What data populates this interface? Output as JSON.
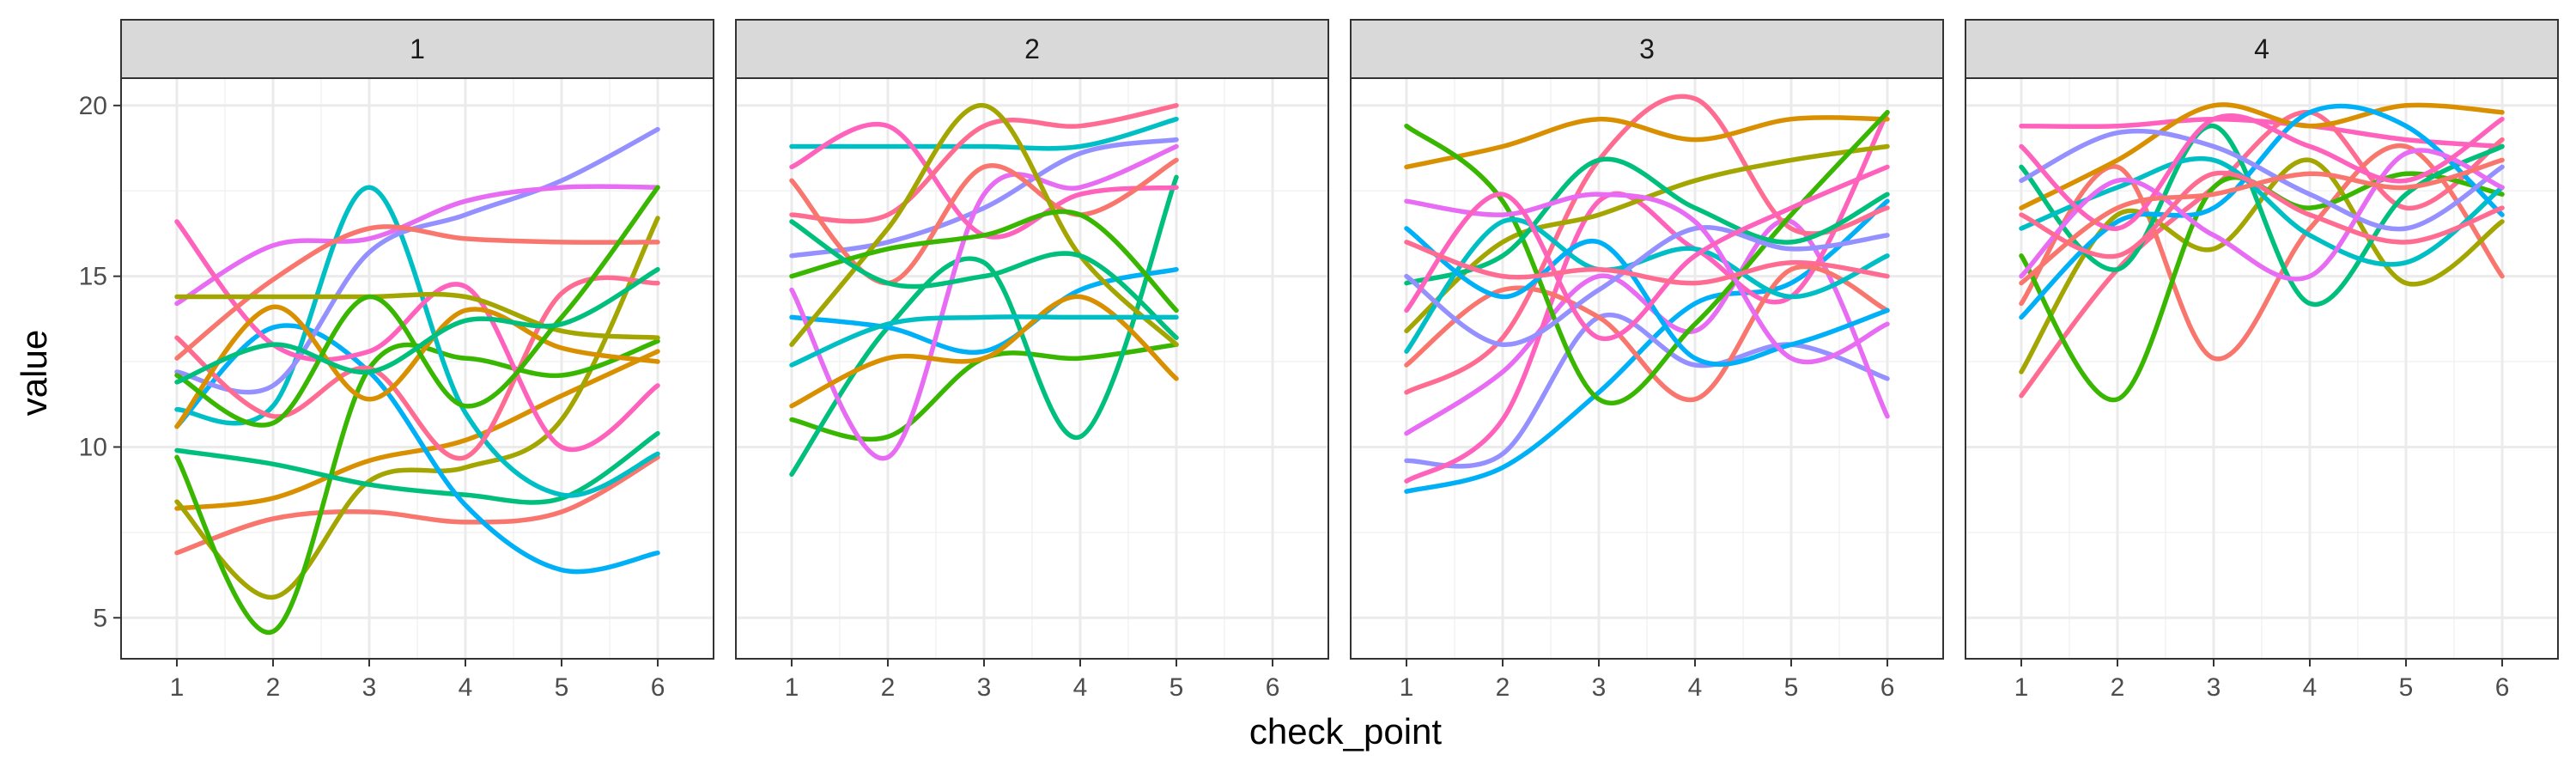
{
  "chart_data": {
    "type": "line",
    "subtype": "smoothed spaghetti lines, faceted",
    "xlabel": "check_point",
    "ylabel": "value",
    "xlim": [
      0.42,
      6.58
    ],
    "ylim": [
      3.8,
      20.8
    ],
    "x_ticks": [
      1,
      2,
      3,
      4,
      5,
      6
    ],
    "y_ticks": [
      5,
      10,
      15,
      20
    ],
    "grid": true,
    "legend": "none",
    "colors": [
      "#F8766D",
      "#D89000",
      "#A3A500",
      "#39B600",
      "#00BF7D",
      "#00BFC4",
      "#00B0F6",
      "#9590FF",
      "#E76BF3",
      "#FF62BC",
      "#FF6C91"
    ],
    "panels": [
      {
        "facet": "1",
        "series": [
          {
            "x": [
              1,
              2,
              3,
              4,
              5,
              6
            ],
            "y": [
              6.9,
              7.9,
              8.1,
              7.8,
              8.1,
              9.7
            ]
          },
          {
            "x": [
              1,
              2,
              3,
              4,
              5,
              6
            ],
            "y": [
              8.2,
              8.5,
              9.6,
              10.2,
              11.5,
              12.8
            ]
          },
          {
            "x": [
              1,
              2,
              3,
              4,
              5,
              6
            ],
            "y": [
              8.4,
              5.6,
              9.0,
              9.4,
              10.8,
              16.7
            ]
          },
          {
            "x": [
              1,
              2,
              3,
              4,
              5,
              6
            ],
            "y": [
              9.7,
              4.6,
              12.3,
              12.6,
              12.1,
              13.1
            ]
          },
          {
            "x": [
              1,
              2,
              3,
              4,
              5,
              6
            ],
            "y": [
              9.9,
              9.5,
              8.9,
              8.6,
              8.5,
              10.4
            ]
          },
          {
            "x": [
              1,
              2,
              3,
              4,
              5,
              6
            ],
            "y": [
              11.1,
              11.2,
              17.6,
              11.0,
              8.6,
              9.8
            ]
          },
          {
            "x": [
              1,
              2,
              3,
              4,
              5,
              6
            ],
            "y": [
              10.6,
              13.5,
              12.2,
              8.3,
              6.4,
              6.9
            ]
          },
          {
            "x": [
              1,
              2,
              3,
              4,
              5,
              6
            ],
            "y": [
              12.2,
              11.8,
              15.7,
              16.8,
              17.8,
              19.3
            ]
          },
          {
            "x": [
              1,
              2,
              3,
              4,
              5,
              6
            ],
            "y": [
              14.2,
              15.9,
              16.1,
              17.2,
              17.6,
              17.6
            ]
          },
          {
            "x": [
              1,
              2,
              3,
              4,
              5,
              6
            ],
            "y": [
              16.6,
              13.0,
              12.8,
              14.7,
              10.0,
              11.8
            ]
          },
          {
            "x": [
              1,
              2,
              3,
              4,
              5,
              6
            ],
            "y": [
              13.2,
              10.9,
              12.3,
              9.7,
              14.5,
              14.8
            ]
          },
          {
            "x": [
              1,
              2,
              3,
              4,
              5,
              6
            ],
            "y": [
              12.6,
              14.9,
              16.4,
              16.1,
              16.0,
              16.0
            ]
          },
          {
            "x": [
              1,
              2,
              3,
              4,
              5,
              6
            ],
            "y": [
              10.6,
              14.1,
              11.4,
              14.0,
              12.9,
              12.5
            ]
          },
          {
            "x": [
              1,
              2,
              3,
              4,
              5,
              6
            ],
            "y": [
              14.4,
              14.4,
              14.4,
              14.4,
              13.4,
              13.2
            ]
          },
          {
            "x": [
              1,
              2,
              3,
              4,
              5,
              6
            ],
            "y": [
              12.1,
              10.7,
              14.4,
              11.2,
              13.8,
              17.6
            ]
          },
          {
            "x": [
              1,
              2,
              3,
              4,
              5,
              6
            ],
            "y": [
              11.9,
              13.0,
              12.2,
              13.7,
              13.6,
              15.2
            ]
          }
        ]
      },
      {
        "facet": "2",
        "series": [
          {
            "x": [
              1,
              2,
              3,
              4,
              5
            ],
            "y": [
              10.8,
              10.3,
              12.6,
              12.6,
              13.0
            ]
          },
          {
            "x": [
              1,
              2,
              3,
              4,
              5
            ],
            "y": [
              9.2,
              13.5,
              15.4,
              10.3,
              17.9
            ]
          },
          {
            "x": [
              1,
              2,
              3,
              4,
              5
            ],
            "y": [
              18.8,
              18.8,
              18.8,
              18.8,
              19.6
            ]
          },
          {
            "x": [
              1,
              2,
              3,
              4,
              5
            ],
            "y": [
              13.8,
              13.5,
              12.8,
              14.6,
              15.2
            ]
          },
          {
            "x": [
              1,
              2,
              3,
              4,
              5
            ],
            "y": [
              15.6,
              16.0,
              17.0,
              18.6,
              19.0
            ]
          },
          {
            "x": [
              1,
              2,
              3,
              4,
              5
            ],
            "y": [
              14.6,
              9.7,
              17.4,
              17.6,
              18.8
            ]
          },
          {
            "x": [
              1,
              2,
              3,
              4,
              5
            ],
            "y": [
              18.2,
              19.4,
              16.2,
              17.4,
              17.6
            ]
          },
          {
            "x": [
              1,
              2,
              3,
              4,
              5
            ],
            "y": [
              16.8,
              16.8,
              19.4,
              19.4,
              20.0
            ]
          },
          {
            "x": [
              1,
              2,
              3,
              4,
              5
            ],
            "y": [
              17.8,
              14.8,
              18.2,
              16.8,
              18.4
            ]
          },
          {
            "x": [
              1,
              2,
              3,
              4,
              5
            ],
            "y": [
              11.2,
              12.6,
              12.6,
              14.4,
              12.0
            ]
          },
          {
            "x": [
              1,
              2,
              3,
              4,
              5
            ],
            "y": [
              13.0,
              16.4,
              20.0,
              15.6,
              13.0
            ]
          },
          {
            "x": [
              1,
              2,
              3,
              4,
              5
            ],
            "y": [
              15.0,
              15.8,
              16.2,
              16.8,
              14.0
            ]
          },
          {
            "x": [
              1,
              2,
              3,
              4,
              5
            ],
            "y": [
              16.6,
              14.8,
              15.0,
              15.6,
              13.2
            ]
          },
          {
            "x": [
              1,
              2,
              3,
              4,
              5
            ],
            "y": [
              12.4,
              13.6,
              13.8,
              13.8,
              13.8
            ]
          }
        ]
      },
      {
        "facet": "3",
        "series": [
          {
            "x": [
              1,
              2,
              3,
              4,
              5,
              6
            ],
            "y": [
              8.7,
              9.4,
              11.6,
              14.2,
              14.8,
              17.2
            ]
          },
          {
            "x": [
              1,
              2,
              3,
              4,
              5,
              6
            ],
            "y": [
              9.6,
              9.8,
              13.8,
              12.4,
              13.0,
              12.0
            ]
          },
          {
            "x": [
              1,
              2,
              3,
              4,
              5,
              6
            ],
            "y": [
              10.4,
              12.2,
              15.0,
              13.4,
              16.6,
              10.9
            ]
          },
          {
            "x": [
              1,
              2,
              3,
              4,
              5,
              6
            ],
            "y": [
              9.0,
              10.8,
              17.2,
              15.8,
              14.4,
              19.8
            ]
          },
          {
            "x": [
              1,
              2,
              3,
              4,
              5,
              6
            ],
            "y": [
              11.6,
              13.2,
              18.4,
              20.2,
              16.4,
              17.0
            ]
          },
          {
            "x": [
              1,
              2,
              3,
              4,
              5,
              6
            ],
            "y": [
              12.4,
              14.6,
              13.8,
              11.4,
              15.2,
              14.0
            ]
          },
          {
            "x": [
              1,
              2,
              3,
              4,
              5,
              6
            ],
            "y": [
              18.2,
              18.8,
              19.6,
              19.0,
              19.6,
              19.6
            ]
          },
          {
            "x": [
              1,
              2,
              3,
              4,
              5,
              6
            ],
            "y": [
              13.4,
              16.0,
              16.8,
              17.8,
              18.4,
              18.8
            ]
          },
          {
            "x": [
              1,
              2,
              3,
              4,
              5,
              6
            ],
            "y": [
              19.4,
              17.2,
              11.4,
              13.6,
              16.8,
              19.8
            ]
          },
          {
            "x": [
              1,
              2,
              3,
              4,
              5,
              6
            ],
            "y": [
              14.8,
              15.6,
              18.4,
              17.0,
              16.0,
              17.4
            ]
          },
          {
            "x": [
              1,
              2,
              3,
              4,
              5,
              6
            ],
            "y": [
              12.8,
              16.6,
              15.2,
              15.8,
              14.4,
              15.6
            ]
          },
          {
            "x": [
              1,
              2,
              3,
              4,
              5,
              6
            ],
            "y": [
              16.4,
              14.4,
              16.0,
              12.6,
              13.0,
              14.0
            ]
          },
          {
            "x": [
              1,
              2,
              3,
              4,
              5,
              6
            ],
            "y": [
              15.0,
              13.0,
              14.6,
              16.4,
              15.8,
              16.2
            ]
          },
          {
            "x": [
              1,
              2,
              3,
              4,
              5,
              6
            ],
            "y": [
              17.2,
              16.8,
              17.4,
              16.6,
              12.6,
              13.6
            ]
          },
          {
            "x": [
              1,
              2,
              3,
              4,
              5,
              6
            ],
            "y": [
              14.0,
              17.4,
              13.2,
              15.6,
              17.0,
              18.2
            ]
          },
          {
            "x": [
              1,
              2,
              3,
              4,
              5,
              6
            ],
            "y": [
              16.0,
              15.0,
              15.2,
              14.8,
              15.4,
              15.0
            ]
          }
        ]
      },
      {
        "facet": "4",
        "series": [
          {
            "x": [
              1,
              2,
              3,
              4,
              5,
              6
            ],
            "y": [
              19.4,
              19.4,
              19.6,
              19.4,
              19.0,
              18.8
            ]
          },
          {
            "x": [
              1,
              2,
              3,
              4,
              5,
              6
            ],
            "y": [
              11.5,
              15.2,
              17.6,
              19.8,
              17.0,
              19.0
            ]
          },
          {
            "x": [
              1,
              2,
              3,
              4,
              5,
              6
            ],
            "y": [
              14.2,
              18.2,
              12.6,
              16.4,
              18.8,
              15.0
            ]
          },
          {
            "x": [
              1,
              2,
              3,
              4,
              5,
              6
            ],
            "y": [
              17.0,
              18.4,
              20.0,
              19.4,
              20.0,
              19.8
            ]
          },
          {
            "x": [
              1,
              2,
              3,
              4,
              5,
              6
            ],
            "y": [
              12.2,
              16.8,
              15.8,
              18.4,
              14.8,
              16.6
            ]
          },
          {
            "x": [
              1,
              2,
              3,
              4,
              5,
              6
            ],
            "y": [
              15.6,
              11.4,
              17.6,
              17.0,
              18.0,
              17.4
            ]
          },
          {
            "x": [
              1,
              2,
              3,
              4,
              5,
              6
            ],
            "y": [
              18.2,
              15.2,
              19.4,
              14.2,
              17.4,
              18.8
            ]
          },
          {
            "x": [
              1,
              2,
              3,
              4,
              5,
              6
            ],
            "y": [
              16.4,
              17.6,
              18.4,
              16.2,
              15.4,
              17.6
            ]
          },
          {
            "x": [
              1,
              2,
              3,
              4,
              5,
              6
            ],
            "y": [
              13.8,
              16.6,
              17.0,
              19.8,
              19.4,
              16.8
            ]
          },
          {
            "x": [
              1,
              2,
              3,
              4,
              5,
              6
            ],
            "y": [
              17.8,
              19.2,
              18.8,
              17.4,
              16.4,
              18.2
            ]
          },
          {
            "x": [
              1,
              2,
              3,
              4,
              5,
              6
            ],
            "y": [
              15.0,
              17.8,
              16.2,
              15.0,
              18.6,
              17.6
            ]
          },
          {
            "x": [
              1,
              2,
              3,
              4,
              5,
              6
            ],
            "y": [
              18.8,
              16.4,
              19.6,
              18.8,
              17.8,
              19.6
            ]
          },
          {
            "x": [
              1,
              2,
              3,
              4,
              5,
              6
            ],
            "y": [
              16.8,
              15.6,
              18.0,
              16.8,
              16.0,
              17.0
            ]
          },
          {
            "x": [
              1,
              2,
              3,
              4,
              5,
              6
            ],
            "y": [
              14.8,
              17.0,
              17.4,
              18.0,
              17.6,
              18.4
            ]
          }
        ]
      }
    ]
  }
}
